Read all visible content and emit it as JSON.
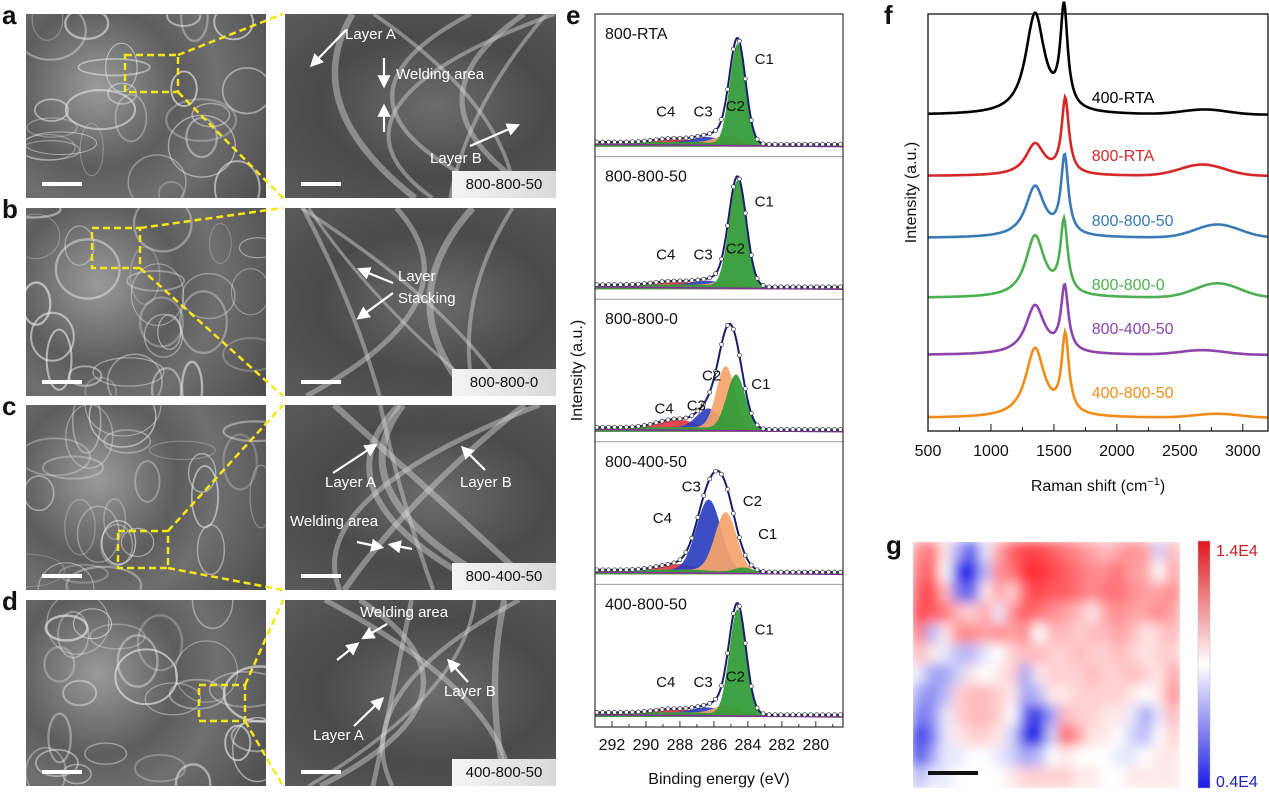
{
  "figure": {
    "panels": {
      "a": {
        "label": "a",
        "sample": "800-800-50",
        "annotations": [
          "Layer A",
          "Welding area",
          "Layer B"
        ]
      },
      "b": {
        "label": "b",
        "sample": "800-800-0",
        "annotations": [
          "Layer",
          "Stacking"
        ]
      },
      "c": {
        "label": "c",
        "sample": "800-400-50",
        "annotations": [
          "Layer A",
          "Layer B",
          "Welding area"
        ]
      },
      "d": {
        "label": "d",
        "sample": "400-800-50",
        "annotations": [
          "Welding area",
          "Layer B",
          "Layer A"
        ]
      },
      "e": {
        "label": "e"
      },
      "f": {
        "label": "f"
      },
      "g": {
        "label": "g"
      }
    }
  },
  "chart_data": [
    {
      "id": "e",
      "type": "area",
      "title": "",
      "xlabel": "Binding energy (eV)",
      "ylabel": "Intensity (a.u.)",
      "xlim": [
        293,
        278.4
      ],
      "x_reversed": true,
      "xticks": [
        292,
        290,
        288,
        286,
        284,
        282,
        280
      ],
      "component_colors": {
        "C1": "#2e9a35",
        "C2": "#f5a46a",
        "C3": "#2d3fc0",
        "C4": "#e2313b"
      },
      "component_labels": [
        "C1",
        "C2",
        "C3",
        "C4"
      ],
      "envelope_color": "#1a1f6b",
      "stacked_panels": [
        {
          "name": "800-RTA",
          "components": [
            {
              "name": "C1",
              "center": 284.6,
              "height": 0.88,
              "fwhm": 1.1
            },
            {
              "name": "C2",
              "center": 285.3,
              "height": 0.07,
              "fwhm": 1.6
            },
            {
              "name": "C3",
              "center": 286.3,
              "height": 0.05,
              "fwhm": 2.0
            },
            {
              "name": "C4",
              "center": 288.5,
              "height": 0.03,
              "fwhm": 2.4
            }
          ]
        },
        {
          "name": "800-800-50",
          "components": [
            {
              "name": "C1",
              "center": 284.6,
              "height": 0.93,
              "fwhm": 1.2
            },
            {
              "name": "C2",
              "center": 285.3,
              "height": 0.05,
              "fwhm": 1.6
            },
            {
              "name": "C3",
              "center": 286.3,
              "height": 0.04,
              "fwhm": 2.0
            },
            {
              "name": "C4",
              "center": 288.5,
              "height": 0.03,
              "fwhm": 2.4
            }
          ]
        },
        {
          "name": "800-800-0",
          "components": [
            {
              "name": "C1",
              "center": 284.7,
              "height": 0.48,
              "fwhm": 1.3
            },
            {
              "name": "C2",
              "center": 285.3,
              "height": 0.55,
              "fwhm": 1.3
            },
            {
              "name": "C3",
              "center": 286.3,
              "height": 0.17,
              "fwhm": 1.6
            },
            {
              "name": "C4",
              "center": 288.3,
              "height": 0.07,
              "fwhm": 2.4
            }
          ]
        },
        {
          "name": "800-400-50",
          "components": [
            {
              "name": "C1",
              "center": 284.3,
              "height": 0.04,
              "fwhm": 1.3
            },
            {
              "name": "C2",
              "center": 285.3,
              "height": 0.52,
              "fwhm": 1.5
            },
            {
              "name": "C3",
              "center": 286.3,
              "height": 0.62,
              "fwhm": 1.7
            },
            {
              "name": "C4",
              "center": 288.2,
              "height": 0.05,
              "fwhm": 2.6
            }
          ]
        },
        {
          "name": "400-800-50",
          "components": [
            {
              "name": "C1",
              "center": 284.6,
              "height": 0.92,
              "fwhm": 1.15
            },
            {
              "name": "C2",
              "center": 285.3,
              "height": 0.08,
              "fwhm": 1.6
            },
            {
              "name": "C3",
              "center": 286.3,
              "height": 0.05,
              "fwhm": 2.0
            },
            {
              "name": "C4",
              "center": 288.5,
              "height": 0.03,
              "fwhm": 2.4
            }
          ]
        }
      ]
    },
    {
      "id": "f",
      "type": "line",
      "title": "",
      "xlabel": "Raman shift (cm",
      "xlabel_sup": "−1",
      "xlabel_tail": ")",
      "ylabel": "Intensity (a.u.)",
      "xlim": [
        500,
        3200
      ],
      "xticks": [
        500,
        1000,
        1500,
        2000,
        2500,
        3000
      ],
      "grid": false,
      "series": [
        {
          "name": "400-RTA",
          "color": "#000000",
          "D": 1.0,
          "G": 1.0,
          "D_pos": 1350,
          "G_pos": 1580,
          "twoD": 0.05,
          "twoD_pos": 2700
        },
        {
          "name": "800-RTA",
          "color": "#d62728",
          "D": 0.42,
          "G": 1.0,
          "D_pos": 1350,
          "G_pos": 1590,
          "twoD": 0.15,
          "twoD_pos": 2680
        },
        {
          "name": "800-800-50",
          "color": "#3a7ab5",
          "D": 0.65,
          "G": 1.0,
          "D_pos": 1350,
          "G_pos": 1585,
          "twoD": 0.17,
          "twoD_pos": 2800
        },
        {
          "name": "800-800-0",
          "color": "#4caf50",
          "D": 0.85,
          "G": 1.0,
          "D_pos": 1350,
          "G_pos": 1580,
          "twoD": 0.2,
          "twoD_pos": 2800
        },
        {
          "name": "800-400-50",
          "color": "#8e44ad",
          "D": 0.75,
          "G": 1.0,
          "D_pos": 1350,
          "G_pos": 1585,
          "twoD": 0.07,
          "twoD_pos": 2680
        },
        {
          "name": "400-800-50",
          "color": "#f08c1a",
          "D": 0.88,
          "G": 1.0,
          "D_pos": 1350,
          "G_pos": 1590,
          "twoD": 0.05,
          "twoD_pos": 2800
        }
      ]
    },
    {
      "id": "g",
      "type": "heatmap",
      "title": "",
      "colorbar": {
        "max_label": "1.4E4",
        "min_label": "0.4E4",
        "max": 14000,
        "min": 4000,
        "max_color": "#e0161e",
        "min_color": "#1a1ae6"
      },
      "grid_values_normalized": [
        [
          0.75,
          0.8,
          0.55,
          0.3,
          0.1,
          0.45,
          0.7,
          0.85,
          0.9,
          0.9,
          0.85,
          0.8,
          0.75,
          0.7,
          0.65,
          0.7,
          0.75,
          0.7,
          0.4,
          0.65
        ],
        [
          0.8,
          0.85,
          0.5,
          0.05,
          0.0,
          0.35,
          0.75,
          0.8,
          0.95,
          0.95,
          0.9,
          0.85,
          0.8,
          0.75,
          0.75,
          0.8,
          0.7,
          0.7,
          0.5,
          0.7
        ],
        [
          0.85,
          0.9,
          0.65,
          0.2,
          0.15,
          0.55,
          0.7,
          0.6,
          0.85,
          0.9,
          0.85,
          0.85,
          0.8,
          0.75,
          0.8,
          0.8,
          0.75,
          0.7,
          0.7,
          0.75
        ],
        [
          0.9,
          0.85,
          0.8,
          0.65,
          0.6,
          0.7,
          0.45,
          0.75,
          0.85,
          0.8,
          0.75,
          0.7,
          0.65,
          0.55,
          0.7,
          0.75,
          0.7,
          0.7,
          0.75,
          0.7
        ],
        [
          0.8,
          0.35,
          0.55,
          0.75,
          0.75,
          0.7,
          0.75,
          0.7,
          0.75,
          0.5,
          0.65,
          0.65,
          0.6,
          0.65,
          0.65,
          0.7,
          0.65,
          0.55,
          0.6,
          0.65
        ],
        [
          0.65,
          0.55,
          0.45,
          0.35,
          0.35,
          0.45,
          0.5,
          0.6,
          0.65,
          0.65,
          0.6,
          0.6,
          0.65,
          0.6,
          0.6,
          0.65,
          0.6,
          0.55,
          0.6,
          0.6
        ],
        [
          0.45,
          0.3,
          0.3,
          0.4,
          0.55,
          0.5,
          0.55,
          0.6,
          0.3,
          0.55,
          0.6,
          0.6,
          0.6,
          0.65,
          0.6,
          0.6,
          0.65,
          0.6,
          0.55,
          0.7
        ],
        [
          0.3,
          0.25,
          0.35,
          0.6,
          0.65,
          0.65,
          0.6,
          0.55,
          0.3,
          0.35,
          0.55,
          0.55,
          0.6,
          0.6,
          0.6,
          0.6,
          0.55,
          0.5,
          0.55,
          0.75
        ],
        [
          0.2,
          0.25,
          0.45,
          0.6,
          0.65,
          0.65,
          0.6,
          0.5,
          0.15,
          0.05,
          0.3,
          0.65,
          0.6,
          0.6,
          0.55,
          0.55,
          0.45,
          0.3,
          0.45,
          0.65
        ],
        [
          0.05,
          0.2,
          0.45,
          0.55,
          0.6,
          0.6,
          0.55,
          0.4,
          0.05,
          0.0,
          0.4,
          0.85,
          0.7,
          0.55,
          0.55,
          0.5,
          0.4,
          0.35,
          0.5,
          0.6
        ],
        [
          0.1,
          0.3,
          0.45,
          0.45,
          0.5,
          0.5,
          0.45,
          0.4,
          0.3,
          0.35,
          0.5,
          0.55,
          0.5,
          0.5,
          0.5,
          0.45,
          0.45,
          0.5,
          0.55,
          0.55
        ],
        [
          0.35,
          0.45,
          0.45,
          0.5,
          0.5,
          0.5,
          0.5,
          0.55,
          0.6,
          0.6,
          0.6,
          0.6,
          0.55,
          0.55,
          0.5,
          0.5,
          0.55,
          0.55,
          0.55,
          0.55
        ]
      ]
    }
  ]
}
